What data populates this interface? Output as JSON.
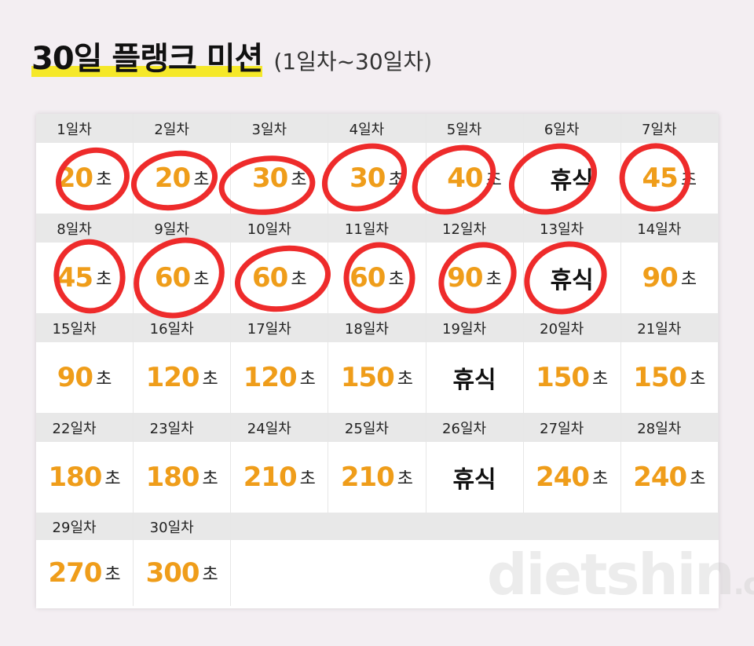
{
  "title": {
    "main": "30일 플랭크 미션",
    "sub": "(1일차~30일차)"
  },
  "rest_label": "휴식",
  "unit_label": "초",
  "days": [
    {
      "day": "1일차",
      "seconds": "20"
    },
    {
      "day": "2일차",
      "seconds": "20"
    },
    {
      "day": "3일차",
      "seconds": "30"
    },
    {
      "day": "4일차",
      "seconds": "30"
    },
    {
      "day": "5일차",
      "seconds": "40"
    },
    {
      "day": "6일차",
      "rest": true
    },
    {
      "day": "7일차",
      "seconds": "45"
    },
    {
      "day": "8일차",
      "seconds": "45"
    },
    {
      "day": "9일차",
      "seconds": "60"
    },
    {
      "day": "10일차",
      "seconds": "60"
    },
    {
      "day": "11일차",
      "seconds": "60"
    },
    {
      "day": "12일차",
      "seconds": "90"
    },
    {
      "day": "13일차",
      "rest": true
    },
    {
      "day": "14일차",
      "seconds": "90"
    },
    {
      "day": "15일차",
      "seconds": "90"
    },
    {
      "day": "16일차",
      "seconds": "120"
    },
    {
      "day": "17일차",
      "seconds": "120"
    },
    {
      "day": "18일차",
      "seconds": "150"
    },
    {
      "day": "19일차",
      "rest": true
    },
    {
      "day": "20일차",
      "seconds": "150"
    },
    {
      "day": "21일차",
      "seconds": "150"
    },
    {
      "day": "22일차",
      "seconds": "180"
    },
    {
      "day": "23일차",
      "seconds": "180"
    },
    {
      "day": "24일차",
      "seconds": "210"
    },
    {
      "day": "25일차",
      "seconds": "210"
    },
    {
      "day": "26일차",
      "rest": true
    },
    {
      "day": "27일차",
      "seconds": "240"
    },
    {
      "day": "28일차",
      "seconds": "240"
    },
    {
      "day": "29일차",
      "seconds": "270"
    },
    {
      "day": "30일차",
      "seconds": "300"
    }
  ],
  "watermark": {
    "main": "dietshin",
    "suffix": ".com"
  },
  "colors": {
    "highlight": "#f5e829",
    "number": "#ef9d1a",
    "circle_mark": "#ee2b2b",
    "header_bg": "#e8e8e8"
  }
}
